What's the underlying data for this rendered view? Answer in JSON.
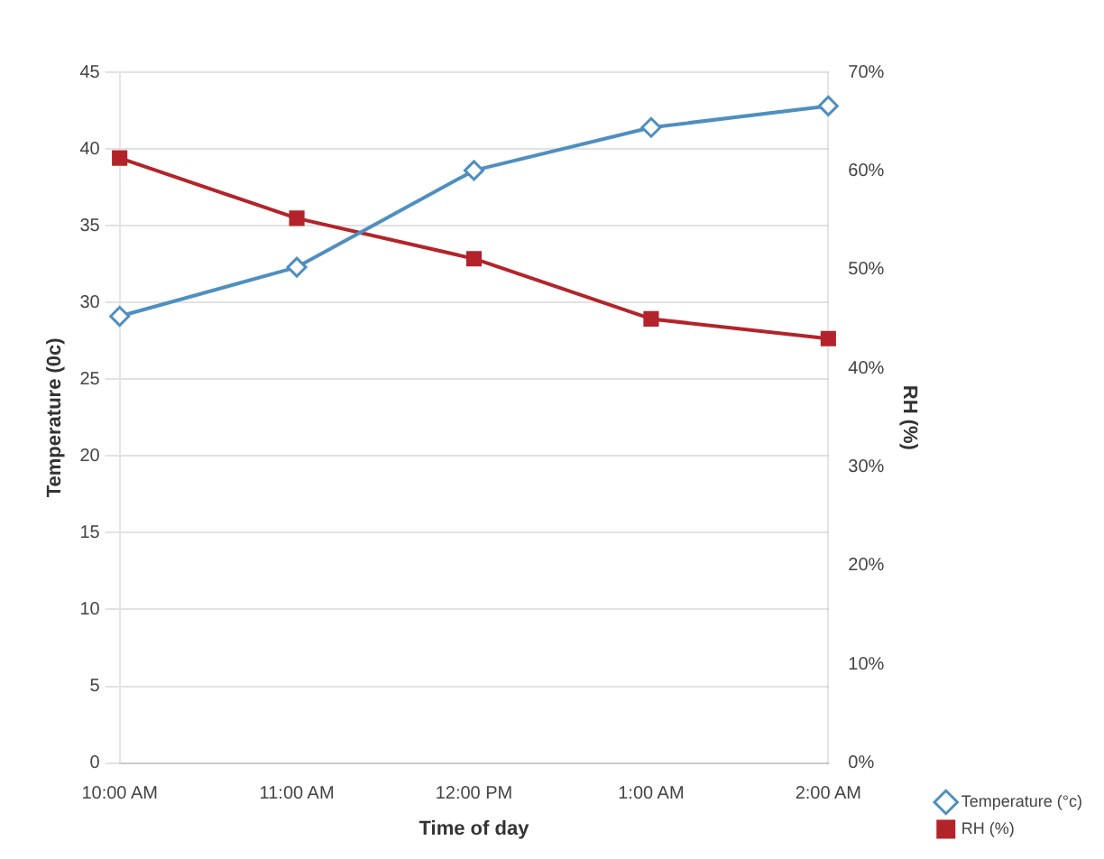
{
  "chart_data": {
    "type": "line",
    "xlabel": "Time of day",
    "ylabel": "Temperature (0c)",
    "y2label": "RH (%)",
    "categories": [
      "10:00 AM",
      "11:00 AM",
      "12:00 PM",
      "1:00 AM",
      "2:00 AM"
    ],
    "series": [
      {
        "name": "Temperature (°c)",
        "color": "#4f8fc0",
        "marker": "diamond",
        "values": [
          29.1,
          32.3,
          38.6,
          41.4,
          42.8
        ]
      },
      {
        "name": "RH (%)",
        "color": "#b3242a",
        "marker": "square",
        "axis": "y2",
        "values": [
          61.3,
          55.2,
          51.1,
          45,
          43
        ]
      }
    ],
    "ylim": [
      0,
      45
    ],
    "yticks": [
      0,
      5,
      10,
      15,
      20,
      25,
      30,
      35,
      40,
      45
    ],
    "y2lim": [
      0,
      70
    ],
    "y2ticks": [
      {
        "value": 0,
        "label": "0%"
      },
      {
        "value": 10,
        "label": "10%"
      },
      {
        "value": 20,
        "label": "20%"
      },
      {
        "value": 30,
        "label": "30%"
      },
      {
        "value": 40,
        "label": "40%"
      },
      {
        "value": 50,
        "label": "50%"
      },
      {
        "value": 60,
        "label": "60%"
      },
      {
        "value": 70,
        "label": "70%"
      }
    ],
    "grid": "y",
    "legend": "bottom right",
    "line_style": "solid"
  }
}
